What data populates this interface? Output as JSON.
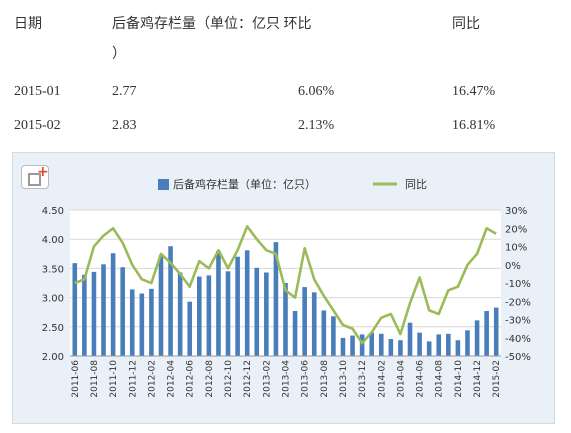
{
  "table": {
    "headers": [
      "日期",
      "后备鸡存栏量（单位：亿只 环比",
      "）",
      "同比"
    ],
    "rows": [
      [
        "2015-01",
        "2.77",
        "6.06%",
        "16.47%"
      ],
      [
        "2015-02",
        "2.83",
        "2.13%",
        "16.81%"
      ]
    ]
  },
  "chart_data": {
    "type": "bar+line",
    "legend": [
      "后备鸡存栏量（单位：亿只）",
      "同比"
    ],
    "legend_position": "top",
    "categories": [
      "2011-06",
      "2011-07",
      "2011-08",
      "2011-09",
      "2011-10",
      "2011-11",
      "2011-12",
      "2012-01",
      "2012-02",
      "2012-03",
      "2012-04",
      "2012-05",
      "2012-06",
      "2012-07",
      "2012-08",
      "2012-09",
      "2012-10",
      "2012-11",
      "2012-12",
      "2013-01",
      "2013-02",
      "2013-03",
      "2013-04",
      "2013-05",
      "2013-06",
      "2013-07",
      "2013-08",
      "2013-09",
      "2013-10",
      "2013-11",
      "2013-12",
      "2014-01",
      "2014-02",
      "2014-03",
      "2014-04",
      "2014-05",
      "2014-06",
      "2014-07",
      "2014-08",
      "2014-09",
      "2014-10",
      "2014-11",
      "2014-12",
      "2015-01",
      "2015-02"
    ],
    "xtick_labels": [
      "2011-06",
      "2011-08",
      "2011-10",
      "2011-12",
      "2012-02",
      "2012-04",
      "2012-06",
      "2012-08",
      "2012-10",
      "2012-12",
      "2013-02",
      "2013-04",
      "2013-06",
      "2013-08",
      "2013-10",
      "2013-12",
      "2014-02",
      "2014-04",
      "2014-06",
      "2014-08",
      "2014-10",
      "2014-12",
      "2015-02"
    ],
    "series": [
      {
        "name": "后备鸡存栏量（单位：亿只）",
        "axis": "left",
        "color": "#4a7ebb",
        "values": [
          3.59,
          3.39,
          3.44,
          3.57,
          3.76,
          3.52,
          3.14,
          3.07,
          3.15,
          3.72,
          3.88,
          3.43,
          2.93,
          3.36,
          3.38,
          3.8,
          3.45,
          3.7,
          3.81,
          3.51,
          3.43,
          3.95,
          3.25,
          2.77,
          3.18,
          3.09,
          2.78,
          2.68,
          2.31,
          2.35,
          2.37,
          2.4,
          2.38,
          2.29,
          2.27,
          2.57,
          2.4,
          2.25,
          2.37,
          2.38,
          2.27,
          2.44,
          2.61,
          2.77,
          2.83
        ]
      },
      {
        "name": "同比",
        "axis": "right",
        "color": "#9bbb59",
        "values": [
          -10,
          -8,
          10,
          16,
          20,
          12,
          0,
          -8,
          -10,
          6,
          1,
          -5,
          -12,
          2,
          -2,
          8,
          -2,
          8,
          21,
          14,
          8,
          6,
          -14,
          -18,
          9,
          -8,
          -17,
          -25,
          -33,
          -35,
          -43,
          -37,
          -29,
          -27,
          -38,
          -21,
          -7,
          -25,
          -27,
          -14,
          -12,
          0,
          6,
          20,
          17
        ]
      }
    ],
    "yleft": {
      "range": [
        2.0,
        4.5
      ],
      "ticks": [
        "2.00",
        "2.50",
        "3.00",
        "3.50",
        "4.00",
        "4.50"
      ]
    },
    "yright": {
      "range": [
        -50,
        30
      ],
      "ticks": [
        "-50%",
        "-40%",
        "-30%",
        "-20%",
        "-10%",
        "0%",
        "10%",
        "20%",
        "30%"
      ]
    },
    "grid": true
  }
}
